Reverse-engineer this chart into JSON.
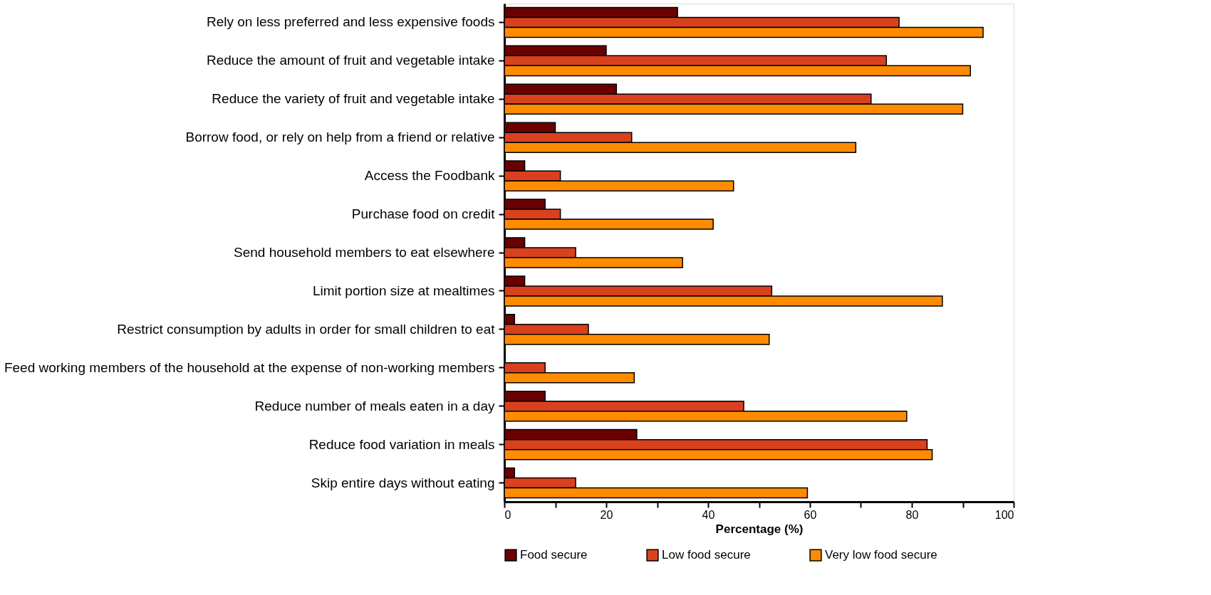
{
  "chart_data": {
    "type": "bar",
    "orientation": "horizontal",
    "xlabel": "Percentage (%)",
    "categories": [
      "Rely on less preferred and less expensive foods",
      "Reduce the amount of fruit and vegetable intake",
      "Reduce the variety of fruit and vegetable intake",
      "Borrow food, or rely on help from a friend or relative",
      "Access the Foodbank",
      "Purchase food on credit",
      "Send household members to eat elsewhere",
      "Limit portion size at mealtimes",
      "Restrict consumption by adults in order for small children to eat",
      "Feed working members of the household at the expense of non-working members",
      "Reduce number of meals eaten in a day",
      "Reduce food variation in meals",
      "Skip entire days without eating"
    ],
    "series": [
      {
        "name": "Food secure",
        "color": "#6b0000",
        "values": [
          34,
          20,
          22,
          10,
          4,
          8,
          4,
          4,
          2,
          null,
          8,
          26,
          2
        ]
      },
      {
        "name": "Low food secure",
        "color": "#d9411e",
        "values": [
          77.5,
          75,
          72,
          25,
          11,
          11,
          14,
          52.5,
          16.5,
          8,
          47,
          83,
          14
        ]
      },
      {
        "name": "Very low food secure",
        "color": "#ff8c00",
        "values": [
          94,
          91.5,
          90,
          69,
          45,
          41,
          35,
          86,
          52,
          25.5,
          79,
          84,
          59.5
        ]
      }
    ],
    "xlim": [
      0,
      100
    ],
    "xticks": [
      0,
      {
        "value": 10,
        "label": null
      },
      20,
      {
        "value": 30,
        "label": null
      },
      40,
      {
        "value": 50,
        "label": null
      },
      60,
      {
        "value": 70,
        "label": null
      },
      80,
      {
        "value": 90,
        "label": null
      },
      100
    ],
    "grid": false,
    "legend": "bottom"
  }
}
